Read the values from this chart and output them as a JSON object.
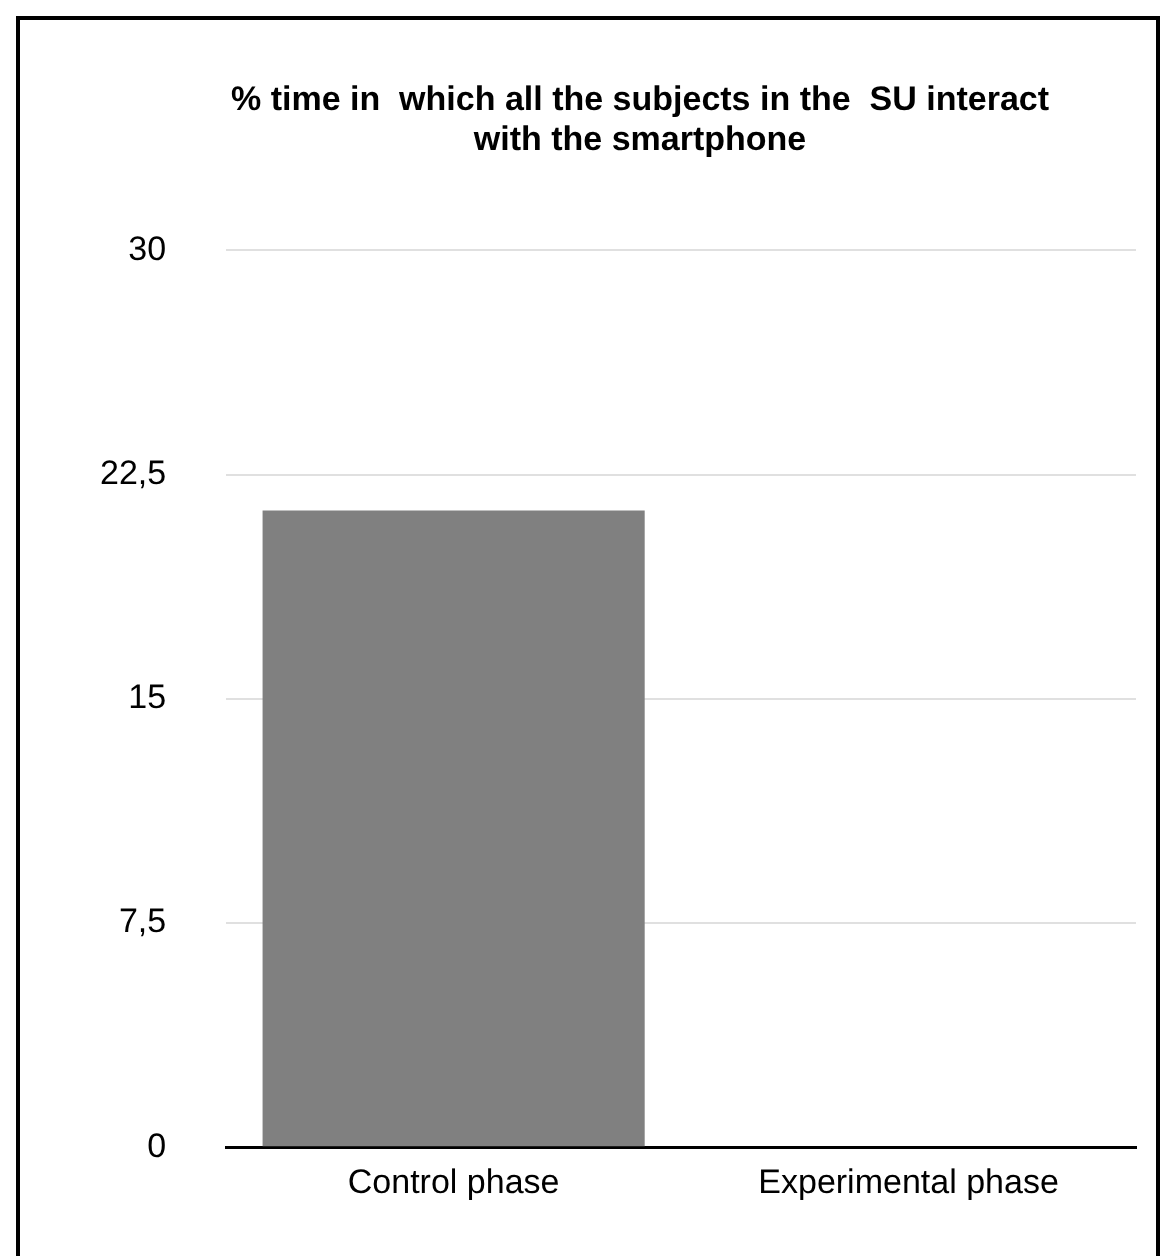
{
  "chart_data": {
    "type": "bar",
    "title": "% time in  which all the subjects in the  SU interact with the smartphone",
    "categories": [
      "Control phase",
      "Experimental phase"
    ],
    "values": [
      21.3,
      0
    ],
    "color": "#808080",
    "ylim": [
      0,
      30
    ],
    "yticks": [
      0,
      {
        "value": 7.5,
        "label": "7,5"
      },
      15,
      {
        "value": 22.5,
        "label": "22,5"
      },
      30
    ],
    "grid": "y",
    "legend": false
  }
}
